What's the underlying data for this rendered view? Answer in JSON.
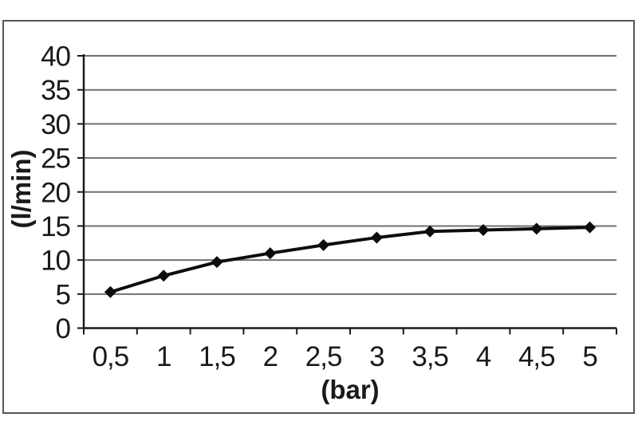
{
  "chart_data": {
    "type": "line",
    "categories": [
      "0,5",
      "1",
      "1,5",
      "2",
      "2,5",
      "3",
      "3,5",
      "4",
      "4,5",
      "5"
    ],
    "x_numeric": [
      0.5,
      1,
      1.5,
      2,
      2.5,
      3,
      3.5,
      4,
      4.5,
      5
    ],
    "values": [
      5.3,
      7.7,
      9.7,
      11.0,
      12.2,
      13.3,
      14.2,
      14.4,
      14.6,
      14.8
    ],
    "title": "",
    "xlabel": "(bar)",
    "ylabel": "(l/min)",
    "ylim": [
      0,
      40
    ],
    "ytick_step": 5,
    "yticks": [
      "0",
      "5",
      "10",
      "15",
      "20",
      "25",
      "30",
      "35",
      "40"
    ],
    "grid": "horizontal",
    "legend": "none",
    "marker": "diamond",
    "colors": {
      "line": "#0d0d0d",
      "marker": "#0d0d0d",
      "gridline": "#707070",
      "axis": "#1a1a1a",
      "frame": "#555555",
      "text": "#1a1a1a",
      "background": "#ffffff"
    }
  }
}
